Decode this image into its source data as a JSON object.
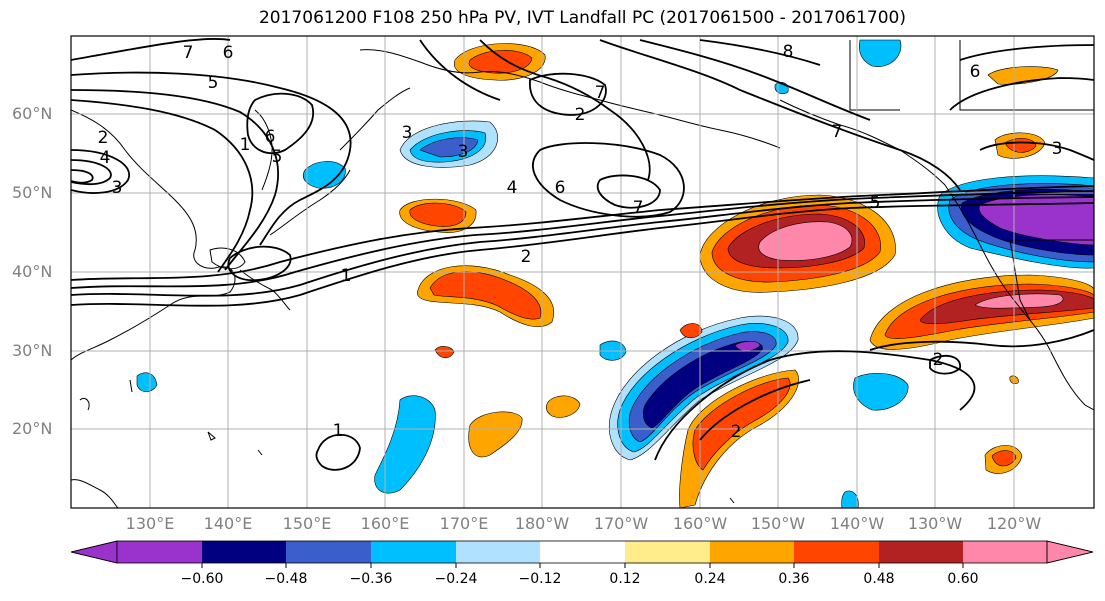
{
  "title": "2017061200 F108 250 hPa PV, IVT Landfall PC (2017061500 - 2017061700)",
  "lat_labels": [
    "60°N",
    "50°N",
    "40°N",
    "30°N",
    "20°N"
  ],
  "lon_labels": [
    "130°E",
    "140°E",
    "150°E",
    "160°E",
    "170°E",
    "180°W",
    "170°W",
    "160°W",
    "150°W",
    "140°W",
    "130°W",
    "120°W"
  ],
  "colorbar": {
    "tick_labels": [
      "−0.60",
      "−0.48",
      "−0.36",
      "−0.24",
      "−0.12",
      "0.12",
      "0.24",
      "0.36",
      "0.48",
      "0.60"
    ],
    "colors": [
      "#9933cc",
      "#000080",
      "#3a5fcd",
      "#00bfff",
      "#b0e2ff",
      "#ffffff",
      "#ffec8b",
      "#ffa500",
      "#ff4500",
      "#b22222",
      "#ff88aa"
    ]
  },
  "contour_labels": [
    "7",
    "6",
    "5",
    "2",
    "4",
    "3",
    "1",
    "6",
    "5",
    "3",
    "2",
    "7",
    "3",
    "4",
    "6",
    "7",
    "2",
    "8",
    "7",
    "5",
    "6",
    "3",
    "1",
    "2",
    "1",
    "2"
  ]
}
